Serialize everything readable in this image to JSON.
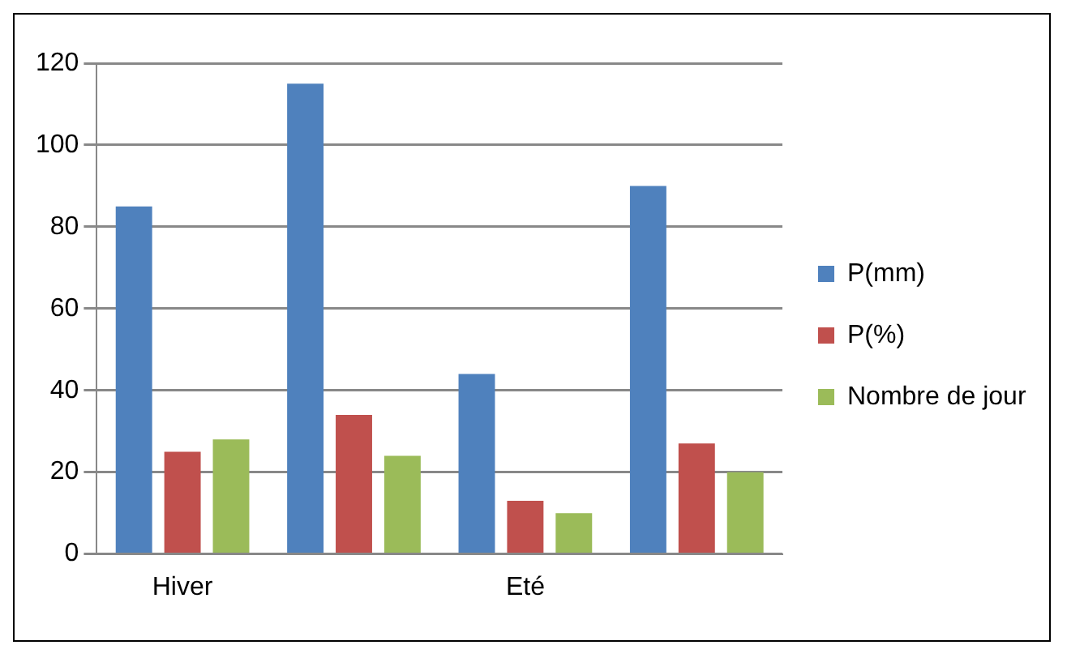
{
  "chart_data": {
    "type": "bar",
    "categories": [
      "Hiver",
      null,
      "Eté",
      null
    ],
    "series": [
      {
        "name": "P(mm)",
        "color": "#4f81bd",
        "values": [
          85,
          115,
          44,
          90
        ]
      },
      {
        "name": "P(%)",
        "color": "#c0504d",
        "values": [
          25,
          34,
          13,
          27
        ]
      },
      {
        "name": "Nombre de jour",
        "color": "#9bbb59",
        "values": [
          28,
          24,
          10,
          20
        ]
      }
    ],
    "ylim": [
      0,
      120
    ],
    "yticks": [
      0,
      20,
      40,
      60,
      80,
      100,
      120
    ],
    "grid": "y",
    "legend": "right"
  }
}
